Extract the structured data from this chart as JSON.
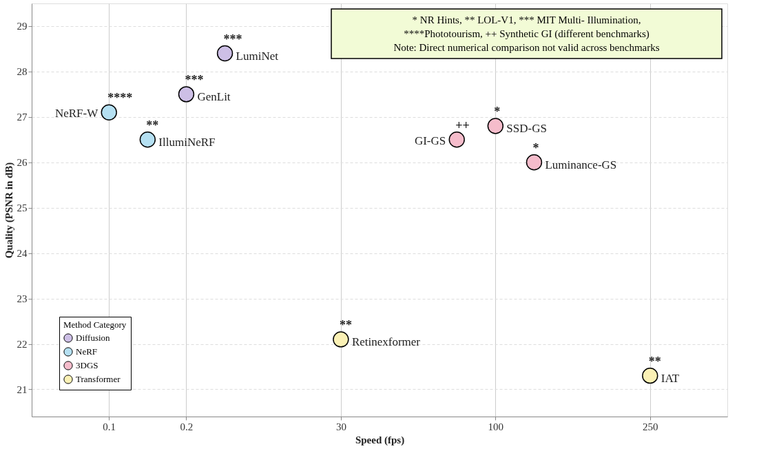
{
  "chart_data": {
    "type": "scatter",
    "xlabel": "Speed (fps)",
    "ylabel": "Quality (PSNR in dB)",
    "legend_title": "Method Category",
    "categories": [
      "0.1",
      null,
      "0.2",
      null,
      null,
      null,
      "30",
      null,
      null,
      null,
      "100",
      null,
      null,
      null,
      "250"
    ],
    "ylim": [
      20.4,
      29.5
    ],
    "yticks": [
      21,
      22,
      23,
      24,
      25,
      26,
      27,
      28,
      29
    ],
    "grid": true,
    "legend": "bottom left",
    "marker": "circle",
    "series": [
      {
        "name": "Diffusion",
        "color": "#cdbfe6",
        "values": [
          null,
          null,
          27.5,
          28.4,
          null,
          null,
          null,
          null,
          null,
          null,
          null,
          null,
          null,
          null,
          null
        ],
        "value_labels": [
          null,
          null,
          "GenLit",
          "LumiNet",
          null,
          null,
          null,
          null,
          null,
          null,
          null,
          null,
          null,
          null,
          null
        ]
      },
      {
        "name": "NeRF",
        "color": "#b5e0f2",
        "values": [
          27.1,
          26.5,
          null,
          null,
          null,
          null,
          null,
          null,
          null,
          null,
          null,
          null,
          null,
          null,
          null
        ],
        "value_labels": [
          "NeRF-W",
          "IllumiNeRF",
          null,
          null,
          null,
          null,
          null,
          null,
          null,
          null,
          null,
          null,
          null,
          null,
          null
        ]
      },
      {
        "name": "3DGS",
        "color": "#f5bccb",
        "values": [
          null,
          null,
          null,
          null,
          null,
          null,
          null,
          null,
          null,
          26.5,
          26.8,
          26.0,
          null,
          null,
          null
        ],
        "value_labels": [
          null,
          null,
          null,
          null,
          null,
          null,
          null,
          null,
          null,
          "GI-GS",
          "SSD-GS",
          "Luminance-GS",
          null,
          null,
          null
        ]
      },
      {
        "name": "Transformer",
        "color": "#fbf1b5",
        "values": [
          null,
          null,
          null,
          null,
          null,
          null,
          22.1,
          null,
          null,
          null,
          null,
          null,
          null,
          null,
          21.3
        ],
        "value_labels": [
          null,
          null,
          null,
          null,
          null,
          null,
          "Retinexformer",
          null,
          null,
          null,
          null,
          null,
          null,
          null,
          "IAT"
        ]
      }
    ],
    "annotations": [
      {
        "text": "***",
        "y": 28.4
      },
      {
        "text": "***",
        "x": "0.2",
        "y": 27.5
      },
      {
        "text": "****",
        "x": "0.1",
        "y": 27.1
      },
      {
        "text": "**",
        "y": 26.5
      },
      {
        "text": "++",
        "y": 26.5
      },
      {
        "text": "*",
        "x": "100",
        "y": 26.8
      },
      {
        "text": "*",
        "y": 26.0
      },
      {
        "text": "**",
        "x": "30",
        "y": 22.1
      },
      {
        "text": "**",
        "x": "250",
        "y": 21.3
      },
      "* NR Hints, ** LOL-V1, *** MIT Multi- Illumination,",
      "****Phototourism, ++ Synthetic GI (different benchmarks)",
      "Note: Direct numerical comparison not valid across benchmarks"
    ]
  }
}
